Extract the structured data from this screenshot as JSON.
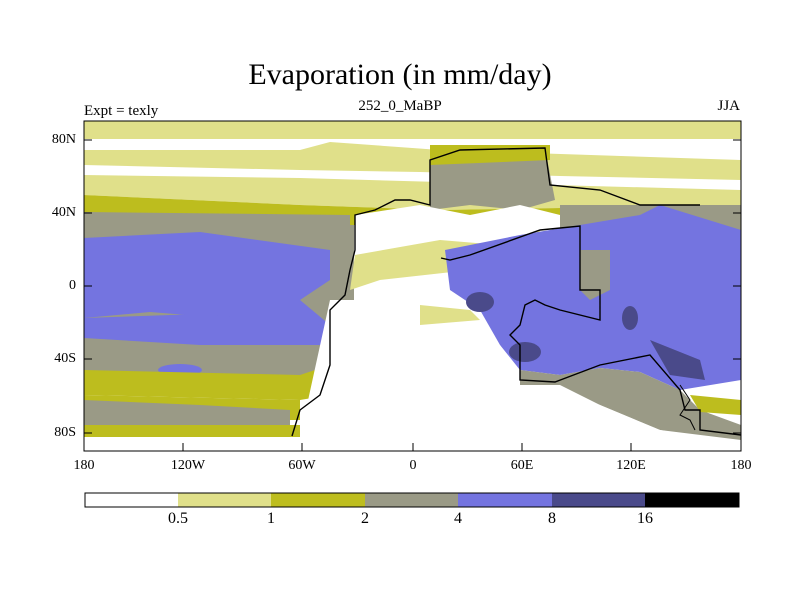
{
  "title": "Evaporation (in mm/day)",
  "left_label": "Expt = texly",
  "center_label": "252_0_MaBP",
  "right_label": "JJA",
  "axes": {
    "y_ticks": [
      "80N",
      "40N",
      "0",
      "40S",
      "80S"
    ],
    "x_ticks": [
      "180",
      "120W",
      "60W",
      "0",
      "60E",
      "120E",
      "180"
    ]
  },
  "colorbar": {
    "colors": [
      "#ffffff",
      "#e0e08a",
      "#bdbd1e",
      "#9a9a86",
      "#7474e0",
      "#4a4a8a",
      "#000000"
    ],
    "labels": [
      "0.5",
      "1",
      "2",
      "4",
      "8",
      "16"
    ]
  }
}
